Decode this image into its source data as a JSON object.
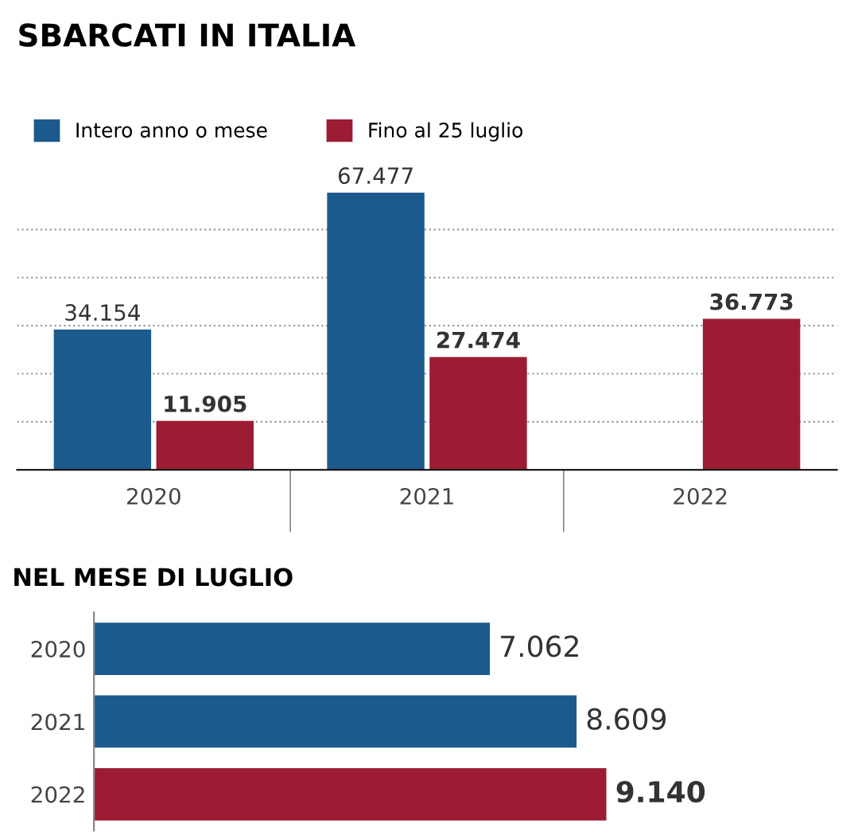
{
  "chart_data": [
    {
      "type": "bar",
      "title": "SBARCATI IN ITALIA",
      "categories": [
        "2020",
        "2021",
        "2022"
      ],
      "series": [
        {
          "name": "Intero anno o mese",
          "color": "#1c5a8e",
          "values": [
            34154,
            67477,
            null
          ],
          "value_labels": [
            "34.154",
            "67.477",
            null
          ]
        },
        {
          "name": "Fino al 25 luglio",
          "color": "#9c1c34",
          "values": [
            11905,
            27474,
            36773
          ],
          "value_labels": [
            "11.905",
            "27.474",
            "36.773"
          ]
        }
      ],
      "yticks": [
        {
          "value": 11700,
          "label": null
        },
        {
          "value": 23400,
          "label": null
        },
        {
          "value": 35100,
          "label": null
        },
        {
          "value": 46800,
          "label": null
        },
        {
          "value": 58500,
          "label": null
        }
      ],
      "grid": "y",
      "legend": "top left",
      "tick_labels": "x"
    },
    {
      "type": "bar",
      "orientation": "horizontal",
      "title": "NEL MESE DI LUGLIO",
      "categories": [
        "2020",
        "2021",
        "2022"
      ],
      "values": [
        7062,
        8609,
        9140
      ],
      "colors": [
        "#1c5a8e",
        "#1c5a8e",
        "#9c1c34"
      ],
      "value_labels": [
        "7.062",
        "8.609",
        "9.140"
      ],
      "tick_labels": "y"
    }
  ]
}
